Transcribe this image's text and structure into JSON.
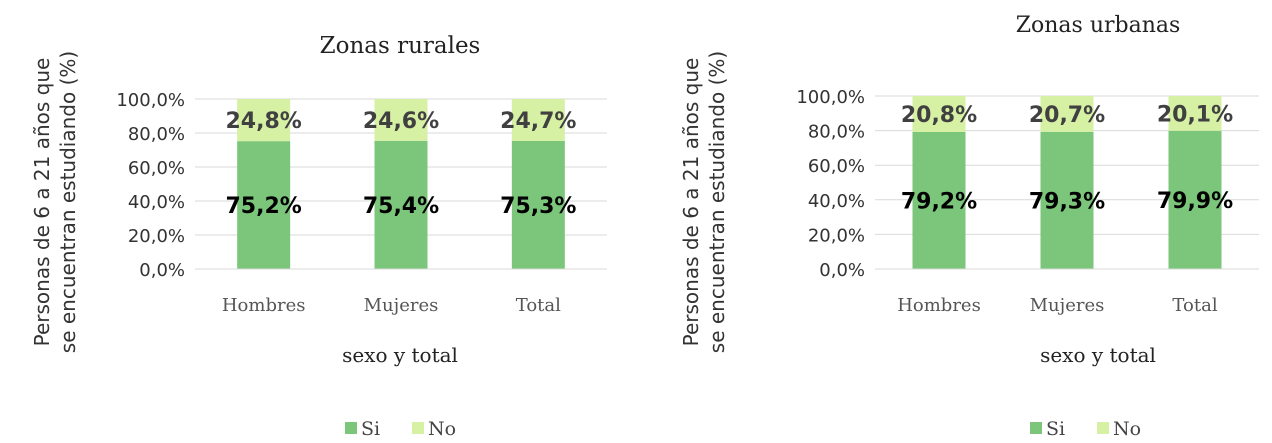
{
  "chart_data": [
    {
      "type": "bar",
      "stacked": true,
      "title": "Zonas rurales",
      "xlabel": "sexo y total",
      "ylabel": "Personas de 6 a 21 años que se encuentran estudiando (%)",
      "ylabel_lines": [
        "Personas de 6 a 21 años que",
        "se encuentran estudiando (%)"
      ],
      "ylim": [
        0,
        100
      ],
      "yticks": [
        "0,0%",
        "20,0%",
        "40,0%",
        "60,0%",
        "80,0%",
        "100,0%"
      ],
      "grid": true,
      "legend_position": "bottom",
      "categories": [
        "Hombres",
        "Mujeres",
        "Total"
      ],
      "series": [
        {
          "name": "Si",
          "color": "#7BC67A",
          "values": [
            75.2,
            75.4,
            75.3
          ],
          "labels": [
            "75,2%",
            "75,4%",
            "75,3%"
          ]
        },
        {
          "name": "No",
          "color": "#D6F0A4",
          "values": [
            24.8,
            24.6,
            24.7
          ],
          "labels": [
            "24,8%",
            "24,6%",
            "24,7%"
          ]
        }
      ]
    },
    {
      "type": "bar",
      "stacked": true,
      "title": "Zonas urbanas",
      "xlabel": "sexo y total",
      "ylabel": "Personas de 6 a 21 años que se encuentran estudiando (%)",
      "ylabel_lines": [
        "Personas de 6 a 21 años que",
        "se encuentran estudiando (%)"
      ],
      "ylim": [
        0,
        100
      ],
      "yticks": [
        "0,0%",
        "20,0%",
        "40,0%",
        "60,0%",
        "80,0%",
        "100,0%"
      ],
      "grid": true,
      "legend_position": "bottom",
      "categories": [
        "Hombres",
        "Mujeres",
        "Total"
      ],
      "series": [
        {
          "name": "Si",
          "color": "#7BC67A",
          "values": [
            79.2,
            79.3,
            79.9
          ],
          "labels": [
            "79,2%",
            "79,3%",
            "79,9%"
          ]
        },
        {
          "name": "No",
          "color": "#D6F0A4",
          "values": [
            20.8,
            20.7,
            20.1
          ],
          "labels": [
            "20,8%",
            "20,7%",
            "20,1%"
          ]
        }
      ]
    }
  ]
}
